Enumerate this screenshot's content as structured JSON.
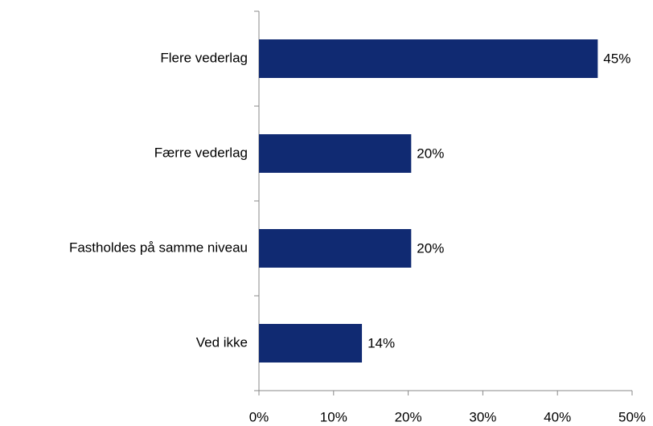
{
  "chart_data": {
    "type": "bar",
    "orientation": "horizontal",
    "categories": [
      "Flere vederlag",
      "Færre vederlag",
      "Fastholdes på samme niveau",
      "Ved ikke"
    ],
    "values": [
      45.4,
      20.4,
      20.4,
      13.8
    ],
    "value_labels": [
      "45%",
      "20%",
      "20%",
      "14%"
    ],
    "color": "#102a72",
    "xlim": [
      0,
      50
    ],
    "xticks": [
      {
        "value": 0,
        "label": "0%"
      },
      {
        "value": 10,
        "label": "10%"
      },
      {
        "value": 20,
        "label": "20%"
      },
      {
        "value": 30,
        "label": "30%"
      },
      {
        "value": 40,
        "label": "40%"
      },
      {
        "value": 50,
        "label": "50%"
      }
    ],
    "grid": false
  }
}
